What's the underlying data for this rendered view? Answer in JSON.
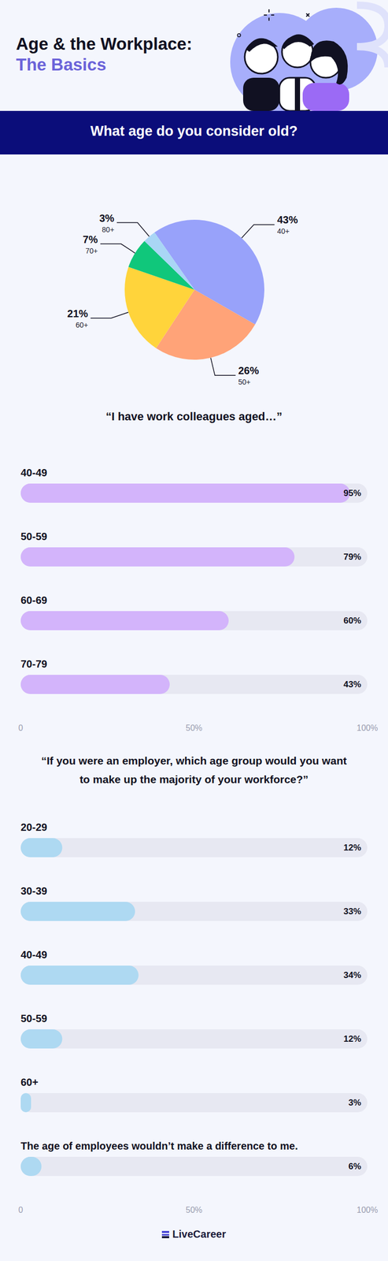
{
  "header": {
    "title": "Age & the Workplace:",
    "subtitle": "The Basics"
  },
  "chart_data": [
    {
      "type": "pie",
      "title": "What age do you consider old?",
      "categories": [
        "40+",
        "50+",
        "60+",
        "70+",
        "80+"
      ],
      "values": [
        43,
        26,
        21,
        7,
        3
      ],
      "value_labels": [
        "43%",
        "26%",
        "21%",
        "7%",
        "3%"
      ],
      "colors": [
        "#98a2fa",
        "#ffa378",
        "#ffd43b",
        "#10c77b",
        "#a9d6f5"
      ],
      "data_labels": true
    },
    {
      "type": "bar",
      "orientation": "horizontal",
      "title": "“I have work colleagues aged…”",
      "categories": [
        "40-49",
        "50-59",
        "60-69",
        "70-79"
      ],
      "values": [
        95,
        79,
        60,
        43
      ],
      "value_labels": [
        "95%",
        "79%",
        "60%",
        "43%"
      ],
      "color": "#d3b4fb",
      "xlim": [
        0,
        100
      ],
      "xticks": [
        0,
        {
          "value": 50,
          "label": "50%"
        },
        {
          "value": 100,
          "label": "100%"
        }
      ],
      "grid": false,
      "data_labels": true
    },
    {
      "type": "bar",
      "orientation": "horizontal",
      "title": "“If you were an employer, which age group would you want to make up the majority of your workforce?”",
      "categories": [
        "20-29",
        "30-39",
        "40-49",
        "50-59",
        "60+",
        "The age of employees wouldn’t make a difference to me."
      ],
      "values": [
        12,
        33,
        34,
        12,
        3,
        6
      ],
      "value_labels": [
        "12%",
        "33%",
        "34%",
        "12%",
        "3%",
        "6%"
      ],
      "color": "#aed9f2",
      "xlim": [
        0,
        100
      ],
      "xticks": [
        0,
        {
          "value": 50,
          "label": "50%"
        },
        {
          "value": 100,
          "label": "100%"
        }
      ],
      "grid": false,
      "data_labels": true
    }
  ],
  "footer": {
    "brand": "LiveCareer"
  }
}
